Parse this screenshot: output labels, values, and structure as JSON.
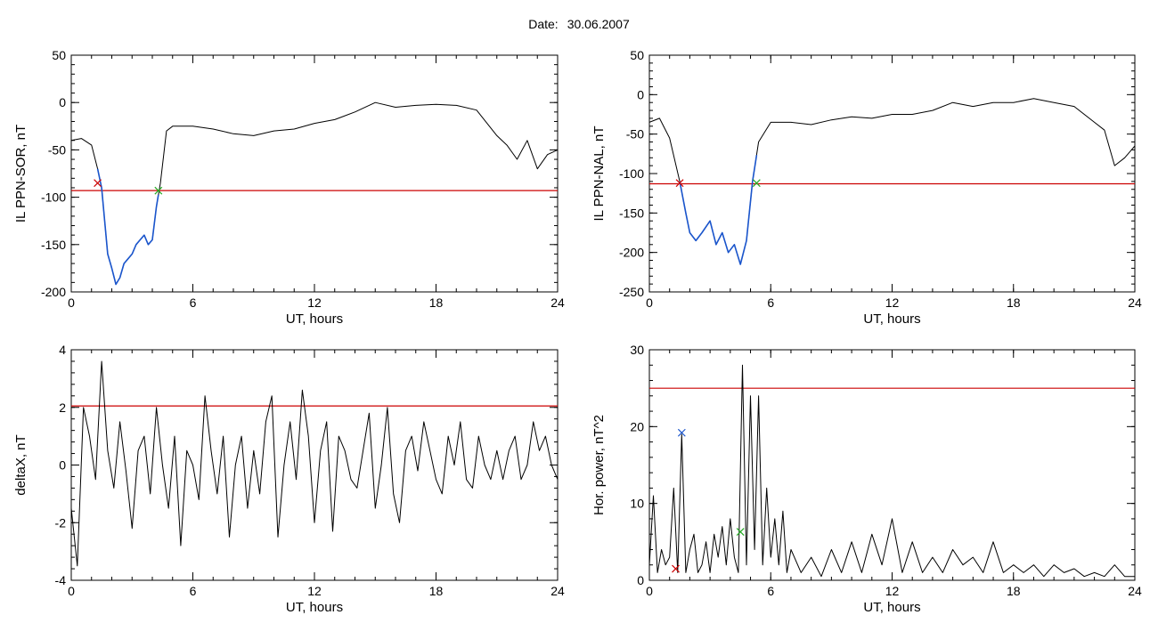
{
  "header": {
    "date_label": "Date:",
    "date_value": "30.06.2007"
  },
  "colors": {
    "axes": "#000000",
    "threshold": "#cc0000",
    "highlight": "#1a55cc",
    "marker_red": "#cc0000",
    "marker_green": "#22aa22",
    "marker_blue": "#1a55cc"
  },
  "chart_data": [
    {
      "type": "line",
      "xlabel": "UT, hours",
      "ylabel": "IL PPN-SOR, nT",
      "xlim": [
        0,
        24
      ],
      "ylim": [
        -200,
        50
      ],
      "xticks": [
        0,
        6,
        12,
        18,
        24
      ],
      "yticks": [
        -200,
        -150,
        -100,
        -50,
        0,
        50
      ],
      "series": [
        {
          "x": [
            0,
            0.5,
            1.0,
            1.3,
            1.5,
            1.8,
            2.0,
            2.2,
            2.4,
            2.6,
            2.8,
            3.0,
            3.2,
            3.4,
            3.6,
            3.8,
            4.0,
            4.2,
            4.4,
            4.7,
            5.0,
            6,
            7,
            8,
            9,
            10,
            11,
            12,
            13,
            14,
            15,
            16,
            17,
            18,
            19,
            20,
            21,
            21.5,
            22.0,
            22.5,
            23.0,
            23.5,
            24
          ],
          "y": [
            -40,
            -38,
            -45,
            -70,
            -90,
            -160,
            -175,
            -192,
            -185,
            -170,
            -165,
            -160,
            -150,
            -145,
            -140,
            -150,
            -145,
            -110,
            -85,
            -30,
            -25,
            -25,
            -28,
            -33,
            -35,
            -30,
            -28,
            -22,
            -18,
            -10,
            0,
            -5,
            -3,
            -2,
            -3,
            -8,
            -35,
            -45,
            -60,
            -40,
            -70,
            -55,
            -50
          ]
        }
      ],
      "highlight_range": [
        1.3,
        4.3
      ],
      "threshold": -93,
      "markers": [
        {
          "x": 1.3,
          "y": -85,
          "color": "red"
        },
        {
          "x": 4.3,
          "y": -93,
          "color": "green"
        }
      ]
    },
    {
      "type": "line",
      "xlabel": "UT, hours",
      "ylabel": "IL PPN-NAL, nT",
      "xlim": [
        0,
        24
      ],
      "ylim": [
        -250,
        50
      ],
      "xticks": [
        0,
        6,
        12,
        18,
        24
      ],
      "yticks": [
        -250,
        -200,
        -150,
        -100,
        -50,
        0,
        50
      ],
      "series": [
        {
          "x": [
            0,
            0.5,
            1.0,
            1.5,
            1.8,
            2.0,
            2.3,
            2.6,
            3.0,
            3.3,
            3.6,
            3.9,
            4.2,
            4.5,
            4.8,
            5.1,
            5.4,
            6,
            7,
            8,
            9,
            10,
            11,
            12,
            13,
            14,
            15,
            16,
            17,
            18,
            19,
            20,
            21,
            22,
            22.5,
            23.0,
            23.5,
            24
          ],
          "y": [
            -35,
            -30,
            -55,
            -110,
            -150,
            -175,
            -185,
            -175,
            -160,
            -190,
            -175,
            -200,
            -190,
            -215,
            -185,
            -110,
            -60,
            -35,
            -35,
            -38,
            -32,
            -28,
            -30,
            -25,
            -25,
            -20,
            -10,
            -15,
            -10,
            -10,
            -5,
            -10,
            -15,
            -35,
            -45,
            -90,
            -80,
            -65
          ]
        }
      ],
      "highlight_range": [
        1.5,
        5.3
      ],
      "threshold": -113,
      "markers": [
        {
          "x": 1.5,
          "y": -112,
          "color": "red"
        },
        {
          "x": 5.3,
          "y": -112,
          "color": "green"
        }
      ]
    },
    {
      "type": "line",
      "xlabel": "UT, hours",
      "ylabel": "deltaX, nT",
      "xlim": [
        0,
        24
      ],
      "ylim": [
        -4,
        4
      ],
      "xticks": [
        0,
        6,
        12,
        18,
        24
      ],
      "yticks": [
        -4,
        -2,
        0,
        2,
        4
      ],
      "series": [
        {
          "x": [
            0,
            0.3,
            0.6,
            0.9,
            1.2,
            1.5,
            1.8,
            2.1,
            2.4,
            2.7,
            3.0,
            3.3,
            3.6,
            3.9,
            4.2,
            4.5,
            4.8,
            5.1,
            5.4,
            5.7,
            6.0,
            6.3,
            6.6,
            6.9,
            7.2,
            7.5,
            7.8,
            8.1,
            8.4,
            8.7,
            9.0,
            9.3,
            9.6,
            9.9,
            10.2,
            10.5,
            10.8,
            11.1,
            11.4,
            11.7,
            12.0,
            12.3,
            12.6,
            12.9,
            13.2,
            13.5,
            13.8,
            14.1,
            14.4,
            14.7,
            15.0,
            15.3,
            15.6,
            15.9,
            16.2,
            16.5,
            16.8,
            17.1,
            17.4,
            17.7,
            18.0,
            18.3,
            18.6,
            18.9,
            19.2,
            19.5,
            19.8,
            20.1,
            20.4,
            20.7,
            21.0,
            21.3,
            21.6,
            21.9,
            22.2,
            22.5,
            22.8,
            23.1,
            23.4,
            23.7,
            24
          ],
          "y": [
            -1.5,
            -3.5,
            2.0,
            1.0,
            -0.5,
            3.6,
            0.5,
            -0.8,
            1.5,
            -0.2,
            -2.2,
            0.5,
            1.0,
            -1.0,
            2.0,
            0.0,
            -1.5,
            1.0,
            -2.8,
            0.5,
            0.0,
            -1.2,
            2.4,
            0.5,
            -1.0,
            1.0,
            -2.5,
            0.0,
            1.0,
            -1.5,
            0.5,
            -1.0,
            1.5,
            2.4,
            -2.5,
            0.0,
            1.5,
            -0.5,
            2.6,
            1.0,
            -2.0,
            0.5,
            1.5,
            -2.3,
            1.0,
            0.5,
            -0.5,
            -0.8,
            0.5,
            1.8,
            -1.5,
            0.0,
            2.0,
            -1.0,
            -2.0,
            0.5,
            1.0,
            -0.2,
            1.5,
            0.5,
            -0.5,
            -1.0,
            1.0,
            0.0,
            1.5,
            -0.5,
            -0.8,
            1.0,
            0.0,
            -0.5,
            0.5,
            -0.5,
            0.5,
            1.0,
            -0.5,
            0.0,
            1.5,
            0.5,
            1.0,
            0.0,
            -0.5
          ]
        }
      ],
      "threshold": 2.05
    },
    {
      "type": "line",
      "xlabel": "UT, hours",
      "ylabel": "Hor. power, nT^2",
      "xlim": [
        0,
        24
      ],
      "ylim": [
        0,
        30
      ],
      "xticks": [
        0,
        6,
        12,
        18,
        24
      ],
      "yticks": [
        0,
        10,
        20,
        30
      ],
      "series": [
        {
          "x": [
            0,
            0.2,
            0.4,
            0.6,
            0.8,
            1.0,
            1.2,
            1.4,
            1.6,
            1.8,
            2.0,
            2.2,
            2.4,
            2.6,
            2.8,
            3.0,
            3.2,
            3.4,
            3.6,
            3.8,
            4.0,
            4.2,
            4.4,
            4.6,
            4.8,
            5.0,
            5.2,
            5.4,
            5.6,
            5.8,
            6.0,
            6.2,
            6.4,
            6.6,
            6.8,
            7.0,
            7.5,
            8.0,
            8.5,
            9.0,
            9.5,
            10.0,
            10.5,
            11.0,
            11.5,
            12.0,
            12.5,
            13.0,
            13.5,
            14.0,
            14.5,
            15.0,
            15.5,
            16.0,
            16.5,
            17.0,
            17.5,
            18.0,
            18.5,
            19.0,
            19.5,
            20.0,
            20.5,
            21.0,
            21.5,
            22.0,
            22.5,
            23.0,
            23.5,
            24
          ],
          "y": [
            2,
            11,
            1,
            4,
            2,
            3,
            12,
            1,
            19,
            1,
            4,
            6,
            1,
            2,
            5,
            1,
            6,
            3,
            7,
            2,
            8,
            3,
            1,
            28,
            2,
            24,
            4,
            24,
            2,
            12,
            3,
            8,
            2,
            9,
            1,
            4,
            1,
            3,
            0.5,
            4,
            1,
            5,
            1,
            6,
            2,
            8,
            1,
            5,
            1,
            3,
            1,
            4,
            2,
            3,
            1,
            5,
            1,
            2,
            1,
            2,
            0.5,
            2,
            1,
            1.5,
            0.5,
            1,
            0.5,
            2,
            0.5,
            0.5
          ]
        }
      ],
      "threshold": 25,
      "markers": [
        {
          "x": 1.6,
          "y": 19.2,
          "color": "blue"
        },
        {
          "x": 1.3,
          "y": 1.5,
          "color": "red"
        },
        {
          "x": 4.5,
          "y": 6.3,
          "color": "green"
        }
      ]
    }
  ]
}
